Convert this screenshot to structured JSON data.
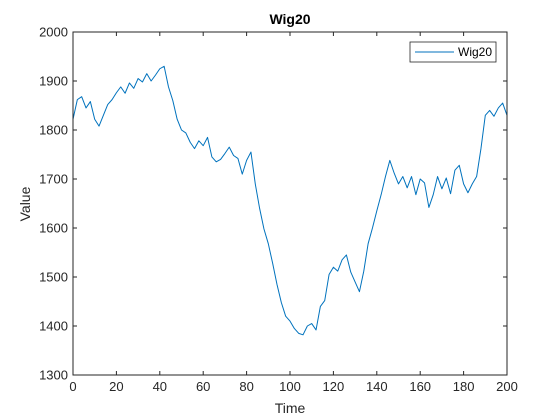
{
  "chart_data": {
    "type": "line",
    "title": "Wig20",
    "xlabel": "Time",
    "ylabel": "Value",
    "xlim": [
      0,
      200
    ],
    "ylim": [
      1300,
      2000
    ],
    "x_ticks": [
      0,
      20,
      40,
      60,
      80,
      100,
      120,
      140,
      160,
      180,
      200
    ],
    "y_ticks": [
      1300,
      1400,
      1500,
      1600,
      1700,
      1800,
      1900,
      2000
    ],
    "grid": false,
    "legend_position": "top-right",
    "series": [
      {
        "name": "Wig20",
        "color": "#0072BD",
        "points": [
          [
            0,
            1822
          ],
          [
            2,
            1862
          ],
          [
            4,
            1868
          ],
          [
            6,
            1845
          ],
          [
            8,
            1858
          ],
          [
            10,
            1822
          ],
          [
            12,
            1808
          ],
          [
            14,
            1830
          ],
          [
            16,
            1852
          ],
          [
            18,
            1862
          ],
          [
            20,
            1876
          ],
          [
            22,
            1888
          ],
          [
            24,
            1875
          ],
          [
            26,
            1896
          ],
          [
            28,
            1885
          ],
          [
            30,
            1905
          ],
          [
            32,
            1898
          ],
          [
            34,
            1915
          ],
          [
            36,
            1900
          ],
          [
            38,
            1912
          ],
          [
            40,
            1925
          ],
          [
            42,
            1930
          ],
          [
            44,
            1888
          ],
          [
            46,
            1860
          ],
          [
            48,
            1822
          ],
          [
            50,
            1800
          ],
          [
            52,
            1794
          ],
          [
            54,
            1775
          ],
          [
            56,
            1762
          ],
          [
            58,
            1778
          ],
          [
            60,
            1768
          ],
          [
            62,
            1785
          ],
          [
            64,
            1745
          ],
          [
            66,
            1735
          ],
          [
            68,
            1740
          ],
          [
            70,
            1752
          ],
          [
            72,
            1765
          ],
          [
            74,
            1748
          ],
          [
            76,
            1742
          ],
          [
            78,
            1710
          ],
          [
            80,
            1738
          ],
          [
            82,
            1755
          ],
          [
            84,
            1690
          ],
          [
            86,
            1640
          ],
          [
            88,
            1598
          ],
          [
            90,
            1568
          ],
          [
            92,
            1528
          ],
          [
            94,
            1485
          ],
          [
            96,
            1448
          ],
          [
            98,
            1420
          ],
          [
            100,
            1410
          ],
          [
            102,
            1395
          ],
          [
            104,
            1385
          ],
          [
            106,
            1382
          ],
          [
            108,
            1400
          ],
          [
            110,
            1405
          ],
          [
            112,
            1392
          ],
          [
            114,
            1440
          ],
          [
            116,
            1452
          ],
          [
            118,
            1505
          ],
          [
            120,
            1520
          ],
          [
            122,
            1512
          ],
          [
            124,
            1535
          ],
          [
            126,
            1545
          ],
          [
            128,
            1510
          ],
          [
            130,
            1490
          ],
          [
            132,
            1470
          ],
          [
            134,
            1512
          ],
          [
            136,
            1568
          ],
          [
            138,
            1600
          ],
          [
            140,
            1635
          ],
          [
            142,
            1668
          ],
          [
            144,
            1705
          ],
          [
            146,
            1738
          ],
          [
            148,
            1712
          ],
          [
            150,
            1690
          ],
          [
            152,
            1705
          ],
          [
            154,
            1682
          ],
          [
            156,
            1705
          ],
          [
            158,
            1668
          ],
          [
            160,
            1700
          ],
          [
            162,
            1692
          ],
          [
            164,
            1642
          ],
          [
            166,
            1668
          ],
          [
            168,
            1705
          ],
          [
            170,
            1680
          ],
          [
            172,
            1702
          ],
          [
            174,
            1670
          ],
          [
            176,
            1718
          ],
          [
            178,
            1728
          ],
          [
            180,
            1690
          ],
          [
            182,
            1672
          ],
          [
            184,
            1690
          ],
          [
            186,
            1705
          ],
          [
            188,
            1762
          ],
          [
            190,
            1830
          ],
          [
            192,
            1840
          ],
          [
            194,
            1828
          ],
          [
            196,
            1845
          ],
          [
            198,
            1855
          ],
          [
            200,
            1830
          ]
        ]
      }
    ]
  }
}
